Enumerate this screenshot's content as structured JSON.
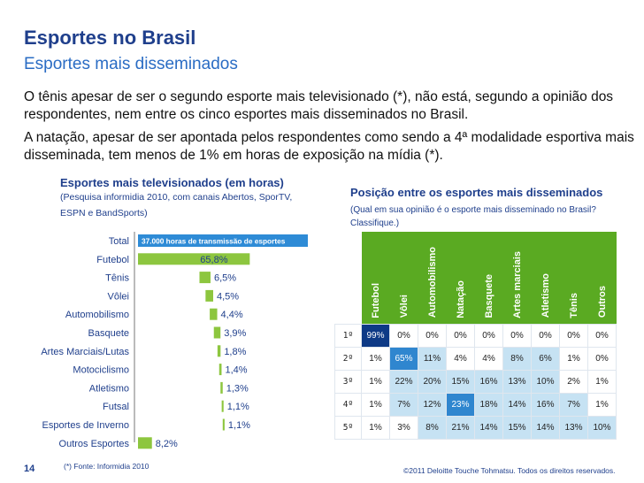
{
  "header": {
    "title": "Esportes no Brasil",
    "subtitle": "Esportes mais disseminados"
  },
  "paragraphs": [
    "O tênis apesar de ser o segundo esporte mais televisionado (*), não está, segundo a opinião dos respondentes, nem entre os cinco esportes mais disseminados no Brasil.",
    "A natação, apesar de ser apontada pelos respondentes como sendo a 4ª modalidade esportiva mais disseminada, tem menos de 1% em horas de exposição na mídia (*)."
  ],
  "left_chart": {
    "title": "Esportes mais televisionados (em horas)",
    "subtitle_line1": "(Pesquisa informidia 2010, com  canais Abertos, SporTV,",
    "subtitle_line2": "ESPN e BandSports)"
  },
  "chart_data": {
    "type": "bar",
    "orientation": "horizontal",
    "title": "Esportes mais televisionados (em horas)",
    "total_label": "Total",
    "total_text": "37.000 horas de transmissão de esportes",
    "categories": [
      "Futebol",
      "Tênis",
      "Vôlei",
      "Automobilismo",
      "Basquete",
      "Artes Marciais/Lutas",
      "Motociclismo",
      "Atletismo",
      "Futsal",
      "Esportes de Inverno",
      "Outros Esportes"
    ],
    "values": [
      65.8,
      6.5,
      4.5,
      4.4,
      3.9,
      1.8,
      1.4,
      1.3,
      1.1,
      1.1,
      8.2
    ],
    "value_labels": [
      "65,8%",
      "6,5%",
      "4,5%",
      "4,4%",
      "3,9%",
      "1,8%",
      "1,4%",
      "1,3%",
      "1,1%",
      "1,1%",
      "8,2%"
    ],
    "xlim": [
      0,
      100
    ],
    "bar_color": "#8dc63f",
    "total_color": "#2e8bd6"
  },
  "right_table": {
    "title": "Posição entre os esportes mais disseminados",
    "subtitle": "(Qual em sua opinião é o esporte mais disseminado no Brasil? Classifique.)",
    "columns": [
      "Futebol",
      "Vôlei",
      "Automobilismo",
      "Natação",
      "Basquete",
      "Artes marciais",
      "Atletismo",
      "Tênis",
      "Outros"
    ],
    "rows": [
      {
        "rank": "1º",
        "cells": [
          "99%",
          "0%",
          "0%",
          "0%",
          "0%",
          "0%",
          "0%",
          "0%",
          "0%"
        ],
        "shades": [
          3,
          0,
          0,
          0,
          0,
          0,
          0,
          0,
          0
        ]
      },
      {
        "rank": "2º",
        "cells": [
          "1%",
          "65%",
          "11%",
          "4%",
          "4%",
          "8%",
          "6%",
          "1%",
          "0%"
        ],
        "shades": [
          0,
          2,
          1,
          0,
          0,
          1,
          1,
          0,
          0
        ]
      },
      {
        "rank": "3º",
        "cells": [
          "1%",
          "22%",
          "20%",
          "15%",
          "16%",
          "13%",
          "10%",
          "2%",
          "1%"
        ],
        "shades": [
          0,
          1,
          1,
          1,
          1,
          1,
          1,
          0,
          0
        ]
      },
      {
        "rank": "4º",
        "cells": [
          "1%",
          "7%",
          "12%",
          "23%",
          "18%",
          "14%",
          "16%",
          "7%",
          "1%"
        ],
        "shades": [
          0,
          1,
          1,
          2,
          1,
          1,
          1,
          1,
          0
        ]
      },
      {
        "rank": "5º",
        "cells": [
          "1%",
          "3%",
          "8%",
          "21%",
          "14%",
          "15%",
          "14%",
          "13%",
          "10%"
        ],
        "shades": [
          0,
          0,
          1,
          1,
          1,
          1,
          1,
          1,
          1
        ]
      }
    ],
    "shade_colors": [
      "#ffffff",
      "#c6e2f3",
      "#2f86cf",
      "#0e3a86"
    ],
    "shade_text_colors": [
      "#222222",
      "#222222",
      "#ffffff",
      "#ffffff"
    ]
  },
  "footer": {
    "page_number": "14",
    "note": "(*) Fonte: Informidia 2010",
    "copyright": "©2011 Deloitte Touche Tohmatsu. Todos os direitos reservados."
  }
}
